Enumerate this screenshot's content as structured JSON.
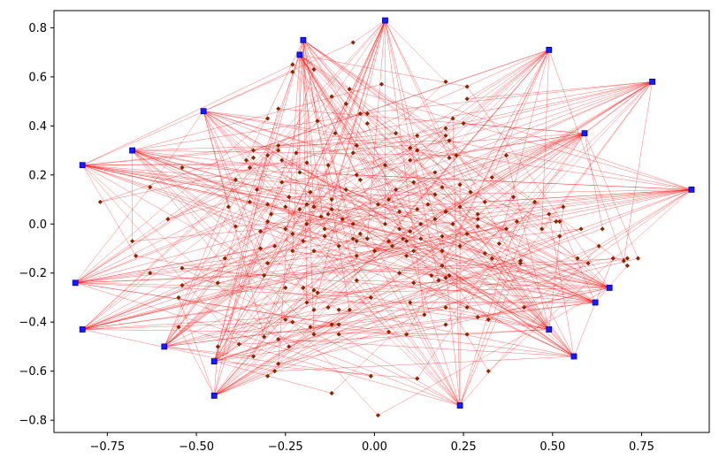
{
  "chart_data": {
    "type": "scatter",
    "title": "",
    "xlabel": "",
    "ylabel": "",
    "xlim": [
      -0.9,
      0.94
    ],
    "ylim": [
      -0.85,
      0.87
    ],
    "grid": false,
    "x_ticks": [
      "−0.75",
      "−0.50",
      "−0.25",
      "0.00",
      "0.25",
      "0.50",
      "0.75"
    ],
    "x_tick_values": [
      -0.75,
      -0.5,
      -0.25,
      0.0,
      0.25,
      0.5,
      0.75
    ],
    "y_ticks": [
      "−0.8",
      "−0.6",
      "−0.4",
      "−0.2",
      "0.0",
      "0.2",
      "0.4",
      "0.6",
      "0.8"
    ],
    "y_tick_values": [
      -0.8,
      -0.6,
      -0.4,
      -0.2,
      0.0,
      0.2,
      0.4,
      0.6,
      0.8
    ],
    "colors": {
      "hub_points": "#1a1aff",
      "hub_outline": "#0000aa",
      "inner_points": "#8b2500",
      "edges": "#ff0000",
      "frame": "#000000"
    },
    "hubs": [
      {
        "x": 0.03,
        "y": 0.83
      },
      {
        "x": -0.2,
        "y": 0.75
      },
      {
        "x": -0.21,
        "y": 0.69
      },
      {
        "x": 0.49,
        "y": 0.71
      },
      {
        "x": 0.78,
        "y": 0.58
      },
      {
        "x": -0.48,
        "y": 0.46
      },
      {
        "x": 0.59,
        "y": 0.37
      },
      {
        "x": -0.82,
        "y": 0.24
      },
      {
        "x": -0.68,
        "y": 0.3
      },
      {
        "x": 0.89,
        "y": 0.14
      },
      {
        "x": -0.84,
        "y": -0.24
      },
      {
        "x": 0.66,
        "y": -0.26
      },
      {
        "x": 0.62,
        "y": -0.32
      },
      {
        "x": -0.82,
        "y": -0.43
      },
      {
        "x": 0.49,
        "y": -0.43
      },
      {
        "x": -0.59,
        "y": -0.5
      },
      {
        "x": 0.56,
        "y": -0.54
      },
      {
        "x": -0.45,
        "y": -0.56
      },
      {
        "x": -0.45,
        "y": -0.7
      },
      {
        "x": 0.24,
        "y": -0.74
      }
    ],
    "points": [
      {
        "x": -0.06,
        "y": 0.74
      },
      {
        "x": -0.23,
        "y": 0.65
      },
      {
        "x": -0.23,
        "y": 0.62
      },
      {
        "x": -0.17,
        "y": 0.63
      },
      {
        "x": 0.02,
        "y": 0.57
      },
      {
        "x": 0.2,
        "y": 0.58
      },
      {
        "x": 0.26,
        "y": 0.56
      },
      {
        "x": -0.07,
        "y": 0.55
      },
      {
        "x": -0.12,
        "y": 0.52
      },
      {
        "x": 0.26,
        "y": 0.51
      },
      {
        "x": -0.08,
        "y": 0.49
      },
      {
        "x": -0.27,
        "y": 0.47
      },
      {
        "x": -0.04,
        "y": 0.45
      },
      {
        "x": -0.02,
        "y": 0.45
      },
      {
        "x": 0.22,
        "y": 0.43
      },
      {
        "x": -0.3,
        "y": 0.43
      },
      {
        "x": -0.16,
        "y": 0.42
      },
      {
        "x": -0.02,
        "y": 0.41
      },
      {
        "x": 0.25,
        "y": 0.41
      },
      {
        "x": 0.2,
        "y": 0.39
      },
      {
        "x": -0.11,
        "y": 0.37
      },
      {
        "x": 0.06,
        "y": 0.37
      },
      {
        "x": 0.12,
        "y": 0.36
      },
      {
        "x": 0.2,
        "y": 0.36
      },
      {
        "x": 0.21,
        "y": 0.34
      },
      {
        "x": -0.27,
        "y": 0.32
      },
      {
        "x": -0.05,
        "y": 0.32
      },
      {
        "x": 0.1,
        "y": 0.31
      },
      {
        "x": -0.27,
        "y": 0.3
      },
      {
        "x": -0.34,
        "y": 0.3
      },
      {
        "x": 0.12,
        "y": 0.3
      },
      {
        "x": -0.22,
        "y": 0.29
      },
      {
        "x": -0.06,
        "y": 0.29
      },
      {
        "x": 0.23,
        "y": 0.28
      },
      {
        "x": -0.3,
        "y": 0.28
      },
      {
        "x": -0.34,
        "y": 0.27
      },
      {
        "x": -0.36,
        "y": 0.26
      },
      {
        "x": -0.26,
        "y": 0.26
      },
      {
        "x": 0.1,
        "y": 0.26
      },
      {
        "x": 0.37,
        "y": 0.28
      },
      {
        "x": 0.21,
        "y": 0.27
      },
      {
        "x": -0.19,
        "y": 0.25
      },
      {
        "x": -0.13,
        "y": 0.24
      },
      {
        "x": 0.03,
        "y": 0.24
      },
      {
        "x": -0.54,
        "y": 0.23
      },
      {
        "x": -0.35,
        "y": 0.23
      },
      {
        "x": -0.21,
        "y": 0.21
      },
      {
        "x": -0.05,
        "y": 0.2
      },
      {
        "x": 0.17,
        "y": 0.21
      },
      {
        "x": 0.33,
        "y": 0.19
      },
      {
        "x": -0.39,
        "y": 0.18
      },
      {
        "x": -0.26,
        "y": 0.17
      },
      {
        "x": -0.04,
        "y": 0.18
      },
      {
        "x": 0.11,
        "y": 0.17
      },
      {
        "x": 0.24,
        "y": 0.16
      },
      {
        "x": -0.63,
        "y": 0.15
      },
      {
        "x": -0.33,
        "y": 0.14
      },
      {
        "x": -0.08,
        "y": 0.14
      },
      {
        "x": 0.06,
        "y": 0.14
      },
      {
        "x": 0.19,
        "y": 0.15
      },
      {
        "x": 0.27,
        "y": 0.13
      },
      {
        "x": -0.18,
        "y": 0.13
      },
      {
        "x": 0.17,
        "y": 0.12
      },
      {
        "x": 0.39,
        "y": 0.11
      },
      {
        "x": -0.24,
        "y": 0.11
      },
      {
        "x": -0.12,
        "y": 0.1
      },
      {
        "x": 0.04,
        "y": 0.1
      },
      {
        "x": 0.31,
        "y": 0.09
      },
      {
        "x": -0.35,
        "y": 0.09
      },
      {
        "x": -0.77,
        "y": 0.09
      },
      {
        "x": -0.3,
        "y": 0.08
      },
      {
        "x": -0.19,
        "y": 0.08
      },
      {
        "x": 0.01,
        "y": 0.08
      },
      {
        "x": 0.15,
        "y": 0.08
      },
      {
        "x": 0.45,
        "y": 0.09
      },
      {
        "x": -0.41,
        "y": 0.07
      },
      {
        "x": -0.17,
        "y": 0.07
      },
      {
        "x": -0.25,
        "y": 0.07
      },
      {
        "x": 0.24,
        "y": 0.07
      },
      {
        "x": 0.53,
        "y": 0.07
      },
      {
        "x": -0.21,
        "y": 0.06
      },
      {
        "x": -0.12,
        "y": 0.06
      },
      {
        "x": 0.12,
        "y": 0.06
      },
      {
        "x": 0.2,
        "y": 0.05
      },
      {
        "x": -0.29,
        "y": 0.04
      },
      {
        "x": -0.13,
        "y": 0.04
      },
      {
        "x": 0.07,
        "y": 0.05
      },
      {
        "x": 0.29,
        "y": 0.04
      },
      {
        "x": 0.49,
        "y": 0.04
      },
      {
        "x": -0.58,
        "y": 0.02
      },
      {
        "x": -0.15,
        "y": 0.03
      },
      {
        "x": -0.09,
        "y": 0.02
      },
      {
        "x": 0.17,
        "y": 0.02
      },
      {
        "x": 0.29,
        "y": 0.02
      },
      {
        "x": 0.4,
        "y": 0.01
      },
      {
        "x": 0.51,
        "y": 0.01
      },
      {
        "x": 0.52,
        "y": 0.01
      },
      {
        "x": -0.3,
        "y": 0.01
      },
      {
        "x": -0.19,
        "y": 0.0
      },
      {
        "x": -0.06,
        "y": 0.0
      },
      {
        "x": 0.03,
        "y": 0.0
      },
      {
        "x": 0.13,
        "y": 0.0
      },
      {
        "x": 0.22,
        "y": 0.0
      },
      {
        "x": 0.29,
        "y": -0.01
      },
      {
        "x": -0.39,
        "y": -0.01
      },
      {
        "x": -0.25,
        "y": -0.02
      },
      {
        "x": -0.14,
        "y": -0.02
      },
      {
        "x": 0.07,
        "y": -0.02
      },
      {
        "x": 0.37,
        "y": -0.02
      },
      {
        "x": 0.47,
        "y": -0.02
      },
      {
        "x": 0.58,
        "y": -0.02
      },
      {
        "x": 0.64,
        "y": -0.02
      },
      {
        "x": -0.32,
        "y": -0.03
      },
      {
        "x": -0.23,
        "y": -0.04
      },
      {
        "x": -0.04,
        "y": -0.04
      },
      {
        "x": 0.1,
        "y": -0.03
      },
      {
        "x": 0.26,
        "y": -0.04
      },
      {
        "x": 0.19,
        "y": -0.05
      },
      {
        "x": -0.14,
        "y": -0.05
      },
      {
        "x": -0.06,
        "y": -0.06
      },
      {
        "x": -0.02,
        "y": -0.06
      },
      {
        "x": 0.08,
        "y": -0.06
      },
      {
        "x": 0.13,
        "y": -0.06
      },
      {
        "x": 0.52,
        "y": -0.05
      },
      {
        "x": -0.68,
        "y": -0.07
      },
      {
        "x": -0.2,
        "y": -0.07
      },
      {
        "x": -0.05,
        "y": -0.07
      },
      {
        "x": 0.04,
        "y": -0.07
      },
      {
        "x": 0.09,
        "y": -0.07
      },
      {
        "x": 0.35,
        "y": -0.08
      },
      {
        "x": -0.28,
        "y": -0.09
      },
      {
        "x": -0.1,
        "y": -0.09
      },
      {
        "x": 0.05,
        "y": -0.09
      },
      {
        "x": 0.24,
        "y": -0.09
      },
      {
        "x": 0.63,
        "y": -0.09
      },
      {
        "x": -0.32,
        "y": -0.1
      },
      {
        "x": -0.23,
        "y": -0.11
      },
      {
        "x": -0.17,
        "y": -0.11
      },
      {
        "x": 0.0,
        "y": -0.11
      },
      {
        "x": 0.11,
        "y": -0.11
      },
      {
        "x": 0.19,
        "y": -0.11
      },
      {
        "x": 0.31,
        "y": -0.12
      },
      {
        "x": -0.67,
        "y": -0.13
      },
      {
        "x": -0.05,
        "y": -0.13
      },
      {
        "x": 0.09,
        "y": -0.13
      },
      {
        "x": -0.42,
        "y": -0.14
      },
      {
        "x": 0.33,
        "y": -0.14
      },
      {
        "x": 0.57,
        "y": -0.14
      },
      {
        "x": 0.67,
        "y": -0.14
      },
      {
        "x": 0.7,
        "y": -0.15
      },
      {
        "x": 0.71,
        "y": -0.14
      },
      {
        "x": 0.74,
        "y": -0.14
      },
      {
        "x": 0.41,
        "y": -0.15
      },
      {
        "x": -0.3,
        "y": -0.16
      },
      {
        "x": 0.41,
        "y": -0.16
      },
      {
        "x": 0.6,
        "y": -0.16
      },
      {
        "x": 0.71,
        "y": -0.17
      },
      {
        "x": -0.54,
        "y": -0.18
      },
      {
        "x": 0.19,
        "y": -0.17
      },
      {
        "x": -0.63,
        "y": -0.2
      },
      {
        "x": -0.31,
        "y": -0.21
      },
      {
        "x": 0.07,
        "y": -0.2
      },
      {
        "x": 0.16,
        "y": -0.21
      },
      {
        "x": 0.2,
        "y": -0.22
      },
      {
        "x": 0.21,
        "y": -0.21
      },
      {
        "x": 0.18,
        "y": -0.23
      },
      {
        "x": -0.05,
        "y": -0.23
      },
      {
        "x": -0.44,
        "y": -0.24
      },
      {
        "x": 0.11,
        "y": -0.24
      },
      {
        "x": -0.54,
        "y": -0.25
      },
      {
        "x": -0.25,
        "y": -0.26
      },
      {
        "x": -0.2,
        "y": -0.26
      },
      {
        "x": -0.17,
        "y": -0.27
      },
      {
        "x": -0.16,
        "y": -0.28
      },
      {
        "x": -0.55,
        "y": -0.3
      },
      {
        "x": -0.01,
        "y": -0.3
      },
      {
        "x": -0.19,
        "y": -0.32
      },
      {
        "x": 0.1,
        "y": -0.32
      },
      {
        "x": -0.13,
        "y": -0.34
      },
      {
        "x": 0.2,
        "y": -0.34
      },
      {
        "x": -0.17,
        "y": -0.35
      },
      {
        "x": -0.1,
        "y": -0.35
      },
      {
        "x": 0.26,
        "y": -0.34
      },
      {
        "x": -0.07,
        "y": -0.35
      },
      {
        "x": 0.42,
        "y": -0.34
      },
      {
        "x": 0.14,
        "y": -0.37
      },
      {
        "x": 0.29,
        "y": -0.38
      },
      {
        "x": 0.32,
        "y": -0.39
      },
      {
        "x": -0.23,
        "y": -0.4
      },
      {
        "x": -0.25,
        "y": -0.39
      },
      {
        "x": -0.1,
        "y": -0.41
      },
      {
        "x": 0.2,
        "y": -0.41
      },
      {
        "x": -0.12,
        "y": -0.41
      },
      {
        "x": -0.18,
        "y": -0.42
      },
      {
        "x": -0.55,
        "y": -0.42
      },
      {
        "x": 0.04,
        "y": -0.44
      },
      {
        "x": -0.17,
        "y": -0.45
      },
      {
        "x": -0.1,
        "y": -0.45
      },
      {
        "x": 0.09,
        "y": -0.45
      },
      {
        "x": 0.26,
        "y": -0.45
      },
      {
        "x": -0.31,
        "y": -0.46
      },
      {
        "x": -0.27,
        "y": -0.47
      },
      {
        "x": -0.38,
        "y": -0.49
      },
      {
        "x": -0.44,
        "y": -0.5
      },
      {
        "x": -0.24,
        "y": -0.5
      },
      {
        "x": -0.34,
        "y": -0.54
      },
      {
        "x": -0.27,
        "y": -0.57
      },
      {
        "x": 0.32,
        "y": -0.6
      },
      {
        "x": -0.28,
        "y": -0.6
      },
      {
        "x": -0.3,
        "y": -0.62
      },
      {
        "x": -0.01,
        "y": -0.62
      },
      {
        "x": 0.12,
        "y": -0.63
      },
      {
        "x": -0.12,
        "y": -0.69
      },
      {
        "x": 0.01,
        "y": -0.78
      }
    ]
  }
}
